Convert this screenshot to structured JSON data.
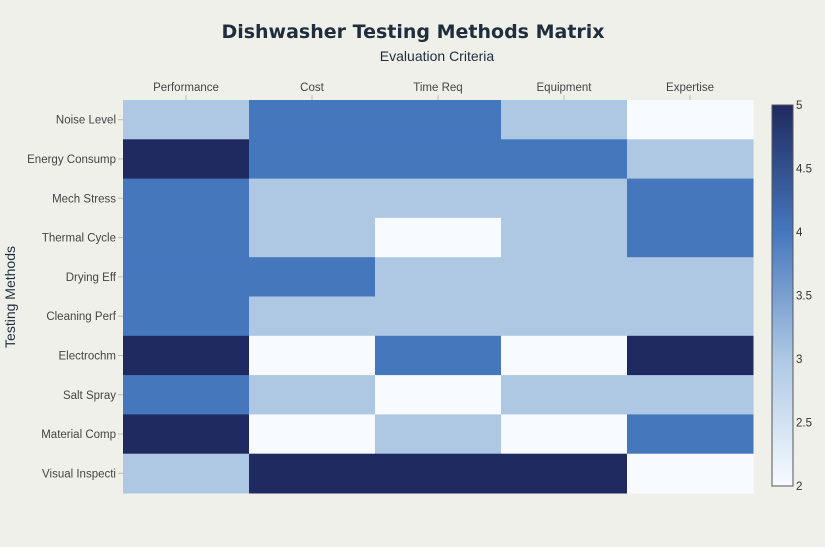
{
  "chart_data": {
    "type": "heatmap",
    "title": "Dishwasher Testing Methods Matrix",
    "xlabel": "Evaluation Criteria",
    "ylabel": "Testing Methods",
    "x_categories": [
      "Performance",
      "Cost",
      "Time Req",
      "Equipment",
      "Expertise"
    ],
    "y_categories": [
      "Noise Level",
      "Energy Consump",
      "Mech Stress",
      "Thermal Cycle",
      "Drying Eff",
      "Cleaning Perf",
      "Electrochm",
      "Salt Spray",
      "Material Comp",
      "Visual Inspecti"
    ],
    "values": [
      [
        3,
        4,
        4,
        3,
        2
      ],
      [
        5,
        4,
        4,
        4,
        3
      ],
      [
        4,
        3,
        3,
        3,
        4
      ],
      [
        4,
        3,
        2,
        3,
        4
      ],
      [
        4,
        4,
        3,
        3,
        3
      ],
      [
        4,
        3,
        3,
        3,
        3
      ],
      [
        5,
        2,
        4,
        2,
        5
      ],
      [
        4,
        3,
        2,
        3,
        3
      ],
      [
        5,
        2,
        3,
        2,
        4
      ],
      [
        3,
        5,
        5,
        5,
        2
      ]
    ],
    "zrange": [
      2,
      5
    ],
    "colorscale": [
      "#f7fbff",
      "#aec8e4",
      "#4577bd",
      "#1f2a60"
    ],
    "colorbar_ticks": [
      "2",
      "2.5",
      "3",
      "3.5",
      "4",
      "4.5",
      "5"
    ],
    "colorbar_tick_values": [
      2,
      2.5,
      3,
      3.5,
      4,
      4.5,
      5
    ],
    "legend": "colorbar-right"
  }
}
